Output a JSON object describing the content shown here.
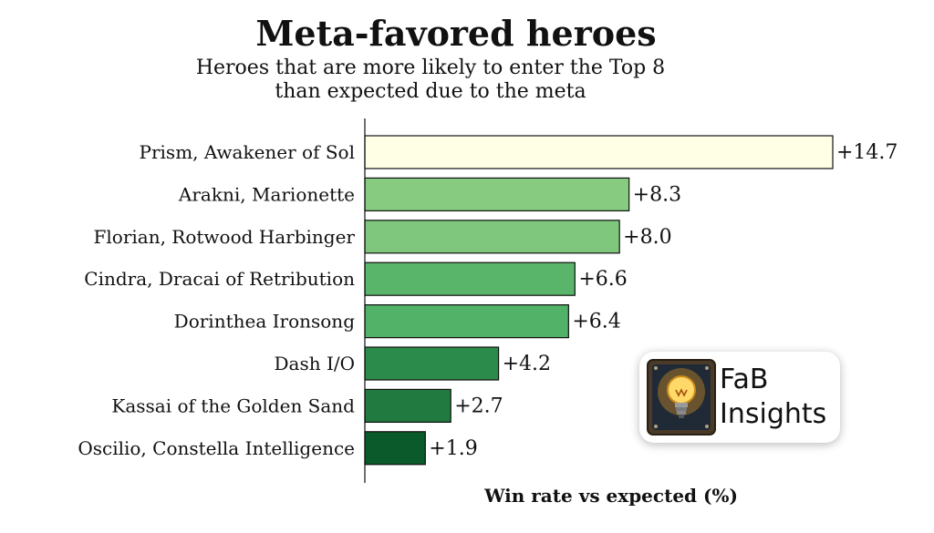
{
  "chart_data": {
    "type": "bar",
    "orientation": "horizontal",
    "title": "Meta-favored heroes",
    "subtitle_lines": [
      "Heroes that are more likely to enter the Top 8",
      "than expected due to the meta"
    ],
    "xlabel": "Win rate vs expected (%)",
    "categories": [
      "Prism, Awakener of Sol",
      "Arakni, Marionette",
      "Florian, Rotwood Harbinger",
      "Cindra, Dracai of Retribution",
      "Dorinthea Ironsong",
      "Dash I/O",
      "Kassai of the Golden Sand",
      "Oscilio, Constella Intelligence"
    ],
    "values": [
      14.7,
      8.3,
      8.0,
      6.6,
      6.4,
      4.2,
      2.7,
      1.9
    ],
    "value_labels": [
      "+14.7",
      "+8.3",
      "+8.0",
      "+6.6",
      "+6.4",
      "+4.2",
      "+2.7",
      "+1.9"
    ],
    "bar_colors": [
      "#ffffe5",
      "#86cb7f",
      "#7ec77d",
      "#58b56a",
      "#52b267",
      "#2b8b4a",
      "#217a3f",
      "#0a5a2c"
    ],
    "xlim": [
      0,
      14.7
    ],
    "grid": false,
    "legend": "none"
  },
  "logo": {
    "line1": "FaB",
    "line2": "Insights",
    "icon": "lightbulb-icon"
  }
}
